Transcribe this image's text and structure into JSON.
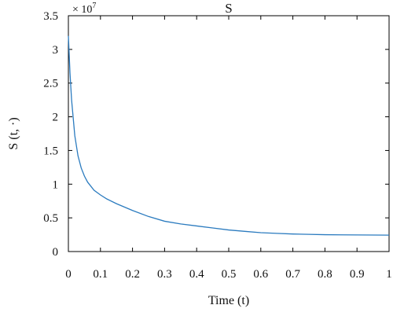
{
  "chart_data": {
    "type": "line",
    "title": "S",
    "xlabel": "Time (t)",
    "ylabel": "S (t, ·)",
    "y_exponent_label": "× 10^7",
    "y_exponent_base": "× 10",
    "y_exponent_power": "7",
    "xlim": [
      0,
      1
    ],
    "ylim": [
      0,
      3.5
    ],
    "xticks": [
      0,
      0.1,
      0.2,
      0.3,
      0.4,
      0.5,
      0.6,
      0.7,
      0.8,
      0.9,
      1
    ],
    "xtick_labels": [
      "0",
      "0.1",
      "0.2",
      "0.3",
      "0.4",
      "0.5",
      "0.6",
      "0.7",
      "0.8",
      "0.9",
      "1"
    ],
    "yticks": [
      0,
      0.5,
      1,
      1.5,
      2,
      2.5,
      3,
      3.5
    ],
    "ytick_labels": [
      "0",
      "0.5",
      "1",
      "1.5",
      "2",
      "2.5",
      "3",
      "3.5"
    ],
    "grid": false,
    "line_color": "#2b7bbf",
    "series": [
      {
        "x": [
          0,
          0.005,
          0.01,
          0.02,
          0.03,
          0.04,
          0.05,
          0.06,
          0.08,
          0.1,
          0.12,
          0.15,
          0.2,
          0.25,
          0.3,
          0.35,
          0.4,
          0.45,
          0.5,
          0.55,
          0.6,
          0.65,
          0.7,
          0.75,
          0.8,
          0.85,
          0.9,
          0.95,
          1.0
        ],
        "y": [
          3.2,
          2.65,
          2.25,
          1.72,
          1.42,
          1.24,
          1.12,
          1.03,
          0.91,
          0.84,
          0.78,
          0.71,
          0.61,
          0.52,
          0.45,
          0.41,
          0.38,
          0.35,
          0.32,
          0.3,
          0.28,
          0.27,
          0.26,
          0.255,
          0.25,
          0.248,
          0.246,
          0.245,
          0.244
        ]
      }
    ]
  }
}
